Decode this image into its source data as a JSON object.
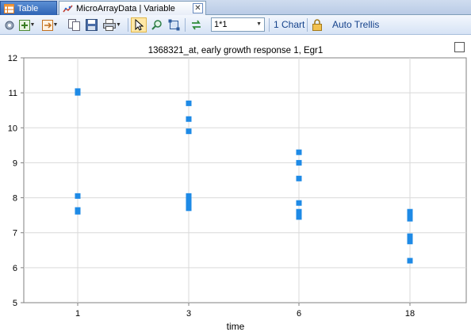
{
  "tabs": [
    {
      "label": "Table",
      "icon": "table-icon"
    },
    {
      "label": "MicroArrayData | Variable",
      "icon": "chart-icon",
      "close": "✕"
    }
  ],
  "toolbar": {
    "layout_value": "1*1",
    "chart_count_label": "1 Chart",
    "trellis_label": "Auto Trellis",
    "icons": [
      "settings-icon",
      "add-icon",
      "export-icon",
      "copy-icon",
      "save-icon",
      "print-icon",
      "select-icon",
      "zoom-icon",
      "fit-icon",
      "refresh-icon",
      "lock-icon"
    ]
  },
  "chart_data": {
    "type": "scatter",
    "title": "1368321_at, early growth response 1, Egr1",
    "xlabel": "time",
    "ylabel": "",
    "x_categories": [
      "1",
      "3",
      "6",
      "18"
    ],
    "ylim": [
      5,
      12
    ],
    "yticks": [
      5,
      6,
      7,
      8,
      9,
      10,
      11,
      12
    ],
    "grid": true,
    "marker_color": "#1e8ae6",
    "points": [
      {
        "x": "1",
        "y": 11.05
      },
      {
        "x": "1",
        "y": 11.0
      },
      {
        "x": "1",
        "y": 8.05
      },
      {
        "x": "1",
        "y": 7.65
      },
      {
        "x": "1",
        "y": 7.6
      },
      {
        "x": "3",
        "y": 10.7
      },
      {
        "x": "3",
        "y": 10.25
      },
      {
        "x": "3",
        "y": 9.9
      },
      {
        "x": "3",
        "y": 8.05
      },
      {
        "x": "3",
        "y": 7.95
      },
      {
        "x": "3",
        "y": 7.85
      },
      {
        "x": "3",
        "y": 7.7
      },
      {
        "x": "6",
        "y": 9.3
      },
      {
        "x": "6",
        "y": 9.0
      },
      {
        "x": "6",
        "y": 8.55
      },
      {
        "x": "6",
        "y": 7.85
      },
      {
        "x": "6",
        "y": 7.6
      },
      {
        "x": "6",
        "y": 7.45
      },
      {
        "x": "18",
        "y": 7.6
      },
      {
        "x": "18",
        "y": 7.5
      },
      {
        "x": "18",
        "y": 7.4
      },
      {
        "x": "18",
        "y": 6.9
      },
      {
        "x": "18",
        "y": 6.75
      },
      {
        "x": "18",
        "y": 6.2
      }
    ]
  }
}
